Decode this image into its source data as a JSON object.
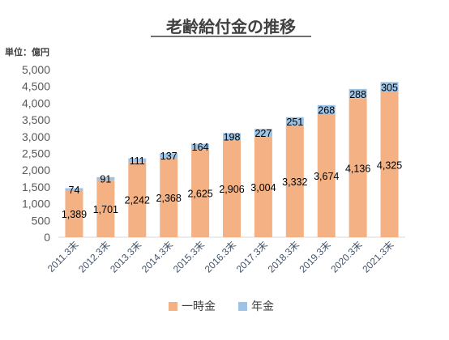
{
  "title": "老齢給付金の推移",
  "unit_label": "単位：億円",
  "chart_data": {
    "type": "bar",
    "stacked": true,
    "categories": [
      "2011.3末",
      "2012.3末",
      "2013.3末",
      "2014.3末",
      "2015.3末",
      "2016.3末",
      "2017.3末",
      "2018.3末",
      "2019.3末",
      "2020.3末",
      "2021.3末"
    ],
    "series": [
      {
        "name": "一時金",
        "color": "#f4b183",
        "values": [
          1389,
          1701,
          2242,
          2368,
          2625,
          2906,
          3004,
          3332,
          3674,
          4136,
          4325
        ],
        "labels": [
          "1,389",
          "1,701",
          "2,242",
          "2,368",
          "2,625",
          "2,906",
          "3,004",
          "3,332",
          "3,674",
          "4,136",
          "4,325"
        ]
      },
      {
        "name": "年金",
        "color": "#9dc3e6",
        "values": [
          74,
          91,
          111,
          137,
          164,
          198,
          227,
          251,
          268,
          288,
          305
        ],
        "labels": [
          "74",
          "91",
          "111",
          "137",
          "164",
          "198",
          "227",
          "251",
          "268",
          "288",
          "305"
        ]
      }
    ],
    "ylim": [
      0,
      5000
    ],
    "yticks": [
      0,
      500,
      1000,
      1500,
      2000,
      2500,
      3000,
      3500,
      4000,
      4500,
      5000
    ],
    "ytick_labels": [
      "0",
      "500",
      "1,000",
      "1,500",
      "2,000",
      "2,500",
      "3,000",
      "3,500",
      "4,000",
      "4,500",
      "5,000"
    ],
    "grid": false,
    "legend_position": "bottom"
  }
}
